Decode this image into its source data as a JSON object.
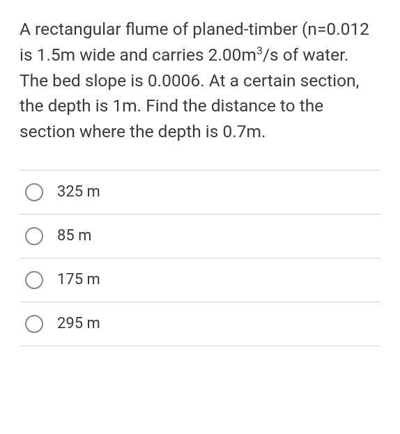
{
  "question": {
    "text_parts": {
      "p1": "A rectangular flume of planed-timber (n=0.012 is 1.5m wide and carries 2.00m",
      "sup": "3",
      "p2": "/s of water. The bed slope is 0.0006. At a certain section, the depth is 1m. Find the distance to the section where the depth is 0.7m."
    }
  },
  "options": [
    {
      "label": "325 m"
    },
    {
      "label": "85 m"
    },
    {
      "label": "175 m"
    },
    {
      "label": "295 m"
    }
  ],
  "style": {
    "text_color": "#3a3a3a",
    "border_color": "#d8d8d8",
    "radio_border": "#878787",
    "question_fontsize": 24.5,
    "option_fontsize": 22
  }
}
